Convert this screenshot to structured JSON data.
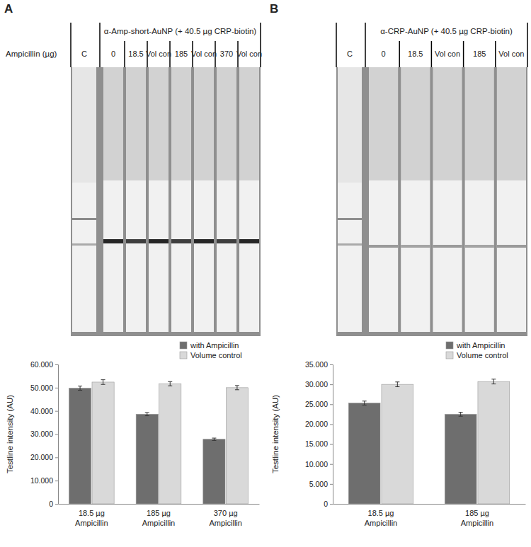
{
  "chart_data": [
    {
      "type": "bar",
      "panel": "A",
      "strip_title": "α-Amp-short-AuNP (+ 40.5 µg CRP-biotin)",
      "strip_row_label": "Ampicillin (µg)",
      "strip_lanes": [
        "C",
        "0",
        "18.5",
        "Vol con",
        "185",
        "Vol con",
        "370",
        "Vol con"
      ],
      "y_label": "Testline intensity (AU)",
      "categories": [
        "18.5 µg Ampicillin",
        "185 µg Ampicillin",
        "370 µg Ampicillin"
      ],
      "series": [
        {
          "name": "with Ampicillin",
          "color": "#6e6e6e",
          "values": [
            49800,
            38600,
            27800
          ],
          "errors": [
            900,
            700,
            500
          ]
        },
        {
          "name": "Volume control",
          "color": "#d9d9d9",
          "values": [
            52400,
            51700,
            50000
          ],
          "errors": [
            1000,
            900,
            900
          ]
        }
      ],
      "ylim": [
        0,
        60000
      ],
      "yticks": [
        0,
        {
          "value": 10000,
          "label": "10.000"
        },
        {
          "value": 20000,
          "label": "20.000"
        },
        {
          "value": 30000,
          "label": "30.000"
        },
        {
          "value": 40000,
          "label": "40.000"
        },
        {
          "value": 50000,
          "label": "50.000"
        },
        {
          "value": 60000,
          "label": "60.000"
        }
      ],
      "legend": "top-right"
    },
    {
      "type": "bar",
      "panel": "B",
      "strip_title": "α-CRP-AuNP (+ 40.5 µg CRP-biotin)",
      "strip_lanes": [
        "C",
        "0",
        "18.5",
        "Vol con",
        "185",
        "Vol con"
      ],
      "y_label": "Testline intensity (AU)",
      "categories": [
        "18.5 µg Ampicillin",
        "185 µg Ampicillin"
      ],
      "series": [
        {
          "name": "with Ampicillin",
          "color": "#6e6e6e",
          "values": [
            25300,
            22500
          ],
          "errors": [
            500,
            500
          ]
        },
        {
          "name": "Volume control",
          "color": "#d9d9d9",
          "values": [
            30000,
            30700
          ],
          "errors": [
            600,
            600
          ]
        }
      ],
      "ylim": [
        0,
        35000
      ],
      "yticks": [
        0,
        {
          "value": 5000,
          "label": "5.000"
        },
        {
          "value": 10000,
          "label": "10.000"
        },
        {
          "value": 15000,
          "label": "15.000"
        },
        {
          "value": 20000,
          "label": "20.000"
        },
        {
          "value": 25000,
          "label": "25.000"
        },
        {
          "value": 30000,
          "label": "30.000"
        },
        {
          "value": 35000,
          "label": "35.000"
        }
      ],
      "legend": "top-right"
    }
  ]
}
